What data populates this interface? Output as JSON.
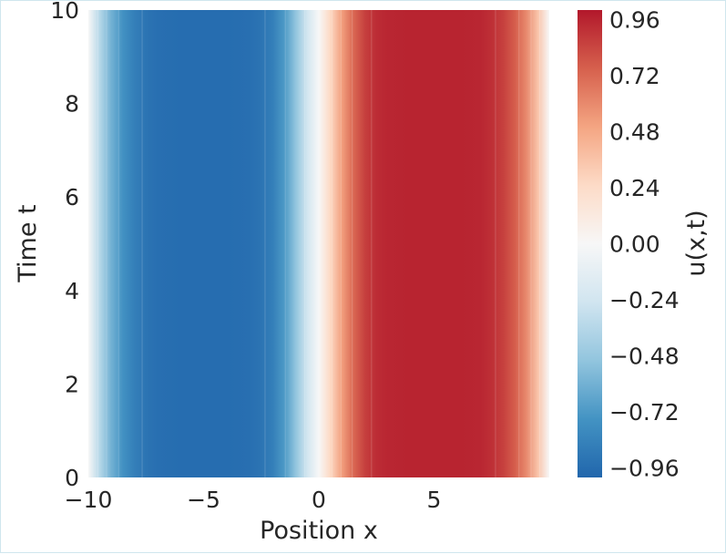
{
  "chart_data": {
    "type": "heatmap",
    "subtype": "filled-contour",
    "title": "",
    "xlabel": "Position x",
    "ylabel": "Time t",
    "colorbar_label": "u(x,t)",
    "xlim": [
      -10,
      10
    ],
    "ylim": [
      0,
      10
    ],
    "x_ticks": [
      -10,
      -5,
      0,
      5
    ],
    "x_tick_labels": [
      "−10",
      "−5",
      "0",
      "5"
    ],
    "y_ticks": [
      0,
      2,
      4,
      6,
      8,
      10
    ],
    "y_tick_labels": [
      "0",
      "2",
      "4",
      "6",
      "8",
      "10"
    ],
    "color_range": [
      -1.0,
      1.0
    ],
    "colorbar_ticks": [
      0.96,
      0.72,
      0.48,
      0.24,
      0.0,
      -0.24,
      -0.48,
      -0.72,
      -0.96
    ],
    "colorbar_tick_labels": [
      "0.96",
      "0.72",
      "0.48",
      "0.24",
      "0.00",
      "−0.24",
      "−0.48",
      "−0.72",
      "−0.96"
    ],
    "colormap": "RdBu_r",
    "colormap_stops": [
      "#2166ac",
      "#4393c3",
      "#92c5de",
      "#d1e5f0",
      "#f7f7f7",
      "#fddbc7",
      "#f4a582",
      "#d6604d",
      "#b2182b"
    ],
    "grid": false,
    "field_profile": {
      "description_values": "u(x) approximately constant in time; u ≈ -1 for x from about -7 to -3, u ≈ +1 for x from about 2.5 to 7, crossing 0 near x = 0, decaying to 0 at x = ±10 (thin boundary layer at small t)",
      "x": [
        -10,
        -9.5,
        -9,
        -8.5,
        -8,
        -7.5,
        -7,
        -6,
        -5,
        -4,
        -3,
        -2.5,
        -2,
        -1.5,
        -1,
        -0.5,
        0,
        0.5,
        1,
        1.5,
        2,
        2.5,
        3,
        4,
        5,
        6,
        7,
        7.5,
        8,
        8.5,
        9,
        9.5,
        10
      ],
      "u": [
        0,
        -0.36,
        -0.6,
        -0.76,
        -0.86,
        -0.92,
        -0.95,
        -0.96,
        -0.96,
        -0.96,
        -0.95,
        -0.92,
        -0.86,
        -0.72,
        -0.5,
        -0.24,
        0.0,
        0.26,
        0.52,
        0.72,
        0.86,
        0.93,
        0.95,
        0.96,
        0.96,
        0.96,
        0.95,
        0.92,
        0.86,
        0.76,
        0.6,
        0.36,
        0
      ]
    }
  }
}
